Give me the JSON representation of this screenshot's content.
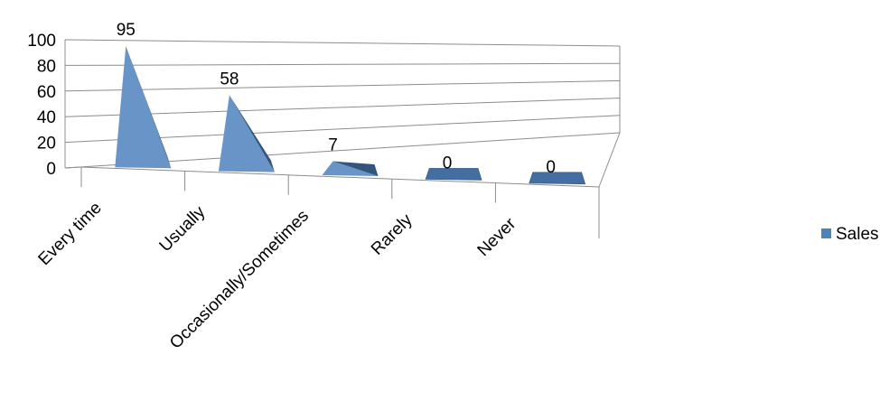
{
  "chart_data": {
    "type": "bar",
    "shape": "3d-pyramid",
    "categories": [
      "Every time",
      "Usually",
      "Occasionally/Sometimes",
      "Rarely",
      "Never"
    ],
    "series": [
      {
        "name": "Sales",
        "values": [
          95,
          58,
          7,
          0,
          0
        ],
        "color": "#4f81bd"
      }
    ],
    "data_labels": [
      "95",
      "58",
      "7",
      "0",
      "0"
    ],
    "y_ticks": [
      "0",
      "20",
      "40",
      "60",
      "80",
      "100"
    ],
    "ylim": [
      0,
      100
    ],
    "title": "",
    "xlabel": "",
    "ylabel": "",
    "grid": true,
    "legend_position": "right"
  }
}
